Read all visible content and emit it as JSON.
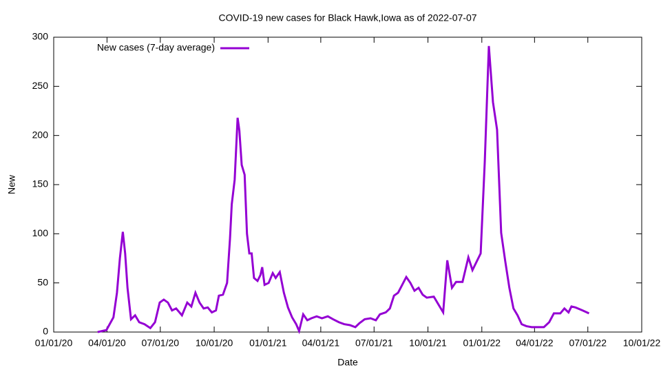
{
  "chart_data": {
    "type": "line",
    "title": "COVID-19 new cases for Black Hawk,Iowa as of 2022-07-07",
    "x_label": "Date",
    "y_label": "New",
    "legend": "top-left",
    "x": [
      "2020-03-16",
      "2020-03-31",
      "2020-04-12",
      "2020-04-18",
      "2020-04-23",
      "2020-04-28",
      "2020-05-02",
      "2020-05-06",
      "2020-05-12",
      "2020-05-19",
      "2020-05-26",
      "2020-06-04",
      "2020-06-14",
      "2020-06-22",
      "2020-06-30",
      "2020-07-07",
      "2020-07-14",
      "2020-07-21",
      "2020-07-28",
      "2020-08-07",
      "2020-08-16",
      "2020-08-23",
      "2020-08-30",
      "2020-09-06",
      "2020-09-13",
      "2020-09-20",
      "2020-09-27",
      "2020-10-04",
      "2020-10-09",
      "2020-10-16",
      "2020-10-23",
      "2020-10-28",
      "2020-10-31",
      "2020-11-05",
      "2020-11-10",
      "2020-11-13",
      "2020-11-17",
      "2020-11-22",
      "2020-11-26",
      "2020-11-30",
      "2020-12-04",
      "2020-12-08",
      "2020-12-14",
      "2020-12-19",
      "2020-12-22",
      "2020-12-26",
      "2021-01-02",
      "2021-01-09",
      "2021-01-14",
      "2021-01-21",
      "2021-01-28",
      "2021-02-04",
      "2021-02-11",
      "2021-02-18",
      "2021-02-23",
      "2021-03-02",
      "2021-03-09",
      "2021-03-16",
      "2021-03-25",
      "2021-04-03",
      "2021-04-13",
      "2021-04-22",
      "2021-05-02",
      "2021-05-11",
      "2021-05-21",
      "2021-05-30",
      "2021-06-06",
      "2021-06-15",
      "2021-06-25",
      "2021-07-04",
      "2021-07-11",
      "2021-07-21",
      "2021-07-28",
      "2021-08-04",
      "2021-08-11",
      "2021-08-18",
      "2021-08-25",
      "2021-09-01",
      "2021-09-08",
      "2021-09-15",
      "2021-09-22",
      "2021-09-29",
      "2021-10-11",
      "2021-10-20",
      "2021-10-27",
      "2021-11-03",
      "2021-11-11",
      "2021-11-18",
      "2021-11-29",
      "2021-12-09",
      "2021-12-16",
      "2021-12-30",
      "2022-01-06",
      "2022-01-13",
      "2022-01-20",
      "2022-01-27",
      "2022-02-03",
      "2022-02-10",
      "2022-02-17",
      "2022-02-24",
      "2022-03-03",
      "2022-03-10",
      "2022-03-18",
      "2022-03-27",
      "2022-04-05",
      "2022-04-17",
      "2022-04-26",
      "2022-05-04",
      "2022-05-15",
      "2022-05-22",
      "2022-05-29",
      "2022-06-03",
      "2022-06-10",
      "2022-06-22",
      "2022-07-03"
    ],
    "series": [
      {
        "name": "New cases (7-day average)",
        "color": "#9400d3",
        "values": [
          0,
          2,
          15,
          40,
          75,
          102,
          80,
          45,
          13,
          17,
          10,
          8,
          4,
          10,
          30,
          33,
          30,
          22,
          24,
          17,
          30,
          26,
          40,
          30,
          24,
          25,
          20,
          22,
          37,
          38,
          50,
          95,
          130,
          155,
          218,
          205,
          170,
          160,
          100,
          80,
          80,
          55,
          52,
          58,
          66,
          48,
          50,
          60,
          55,
          61,
          40,
          25,
          15,
          8,
          1,
          18,
          12,
          14,
          16,
          14,
          16,
          13,
          10,
          8,
          7,
          5,
          9,
          13,
          14,
          12,
          18,
          20,
          24,
          37,
          40,
          48,
          56,
          50,
          42,
          45,
          38,
          35,
          36,
          27,
          20,
          73,
          45,
          51,
          51,
          76,
          63,
          80,
          173,
          291,
          234,
          206,
          101,
          72,
          45,
          24,
          17,
          8,
          6,
          5,
          5,
          5,
          10,
          19,
          19,
          24,
          20,
          26,
          25,
          22,
          19
        ]
      }
    ],
    "xlim": [
      "2020-01-01",
      "2022-10-01"
    ],
    "xticks": [
      {
        "value": "2020-01-01",
        "label": "01/01/20"
      },
      {
        "value": "2020-04-01",
        "label": "04/01/20"
      },
      {
        "value": "2020-07-01",
        "label": "07/01/20"
      },
      {
        "value": "2020-10-01",
        "label": "10/01/20"
      },
      {
        "value": "2021-01-01",
        "label": "01/01/21"
      },
      {
        "value": "2021-04-01",
        "label": "04/01/21"
      },
      {
        "value": "2021-07-01",
        "label": "07/01/21"
      },
      {
        "value": "2021-10-01",
        "label": "10/01/21"
      },
      {
        "value": "2022-01-01",
        "label": "01/01/22"
      },
      {
        "value": "2022-04-01",
        "label": "04/01/22"
      },
      {
        "value": "2022-07-01",
        "label": "07/01/22"
      },
      {
        "value": "2022-10-01",
        "label": "10/01/22"
      }
    ],
    "ylim": [
      0,
      300
    ],
    "yticks": [
      0,
      50,
      100,
      150,
      200,
      250,
      300
    ]
  }
}
